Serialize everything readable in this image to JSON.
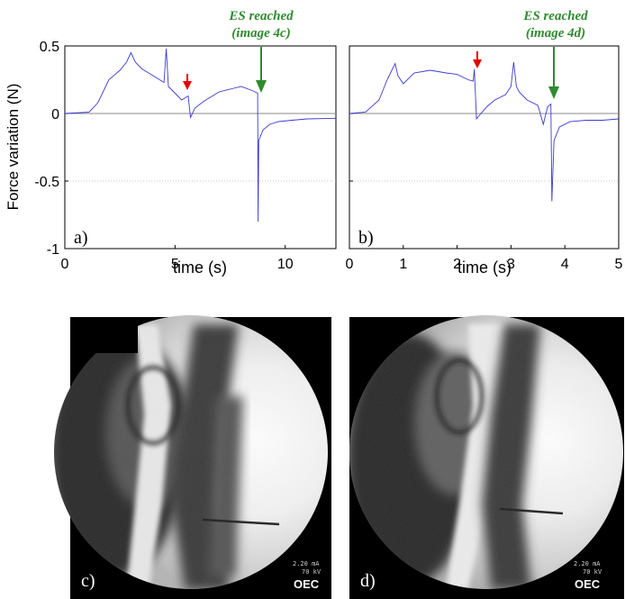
{
  "chart_data": [
    {
      "type": "line",
      "panel_label": "a)",
      "xlabel": "time (s)",
      "ylabel": "Force variation (N)",
      "xlim": [
        0,
        12.3
      ],
      "ylim": [
        -1,
        0.5
      ],
      "xticks": [
        0,
        5,
        10
      ],
      "yticks": [
        -1,
        -0.5,
        0,
        0.5
      ],
      "ytick_labels": [
        "-1",
        "-0.5",
        "0",
        "0.5"
      ],
      "grid": "horizontal dotted at -0.5",
      "zero_line": true,
      "series": [
        {
          "x": [
            0,
            1.1,
            1.5,
            2.0,
            2.5,
            2.8,
            3.0,
            3.2,
            3.5,
            3.8,
            4.0,
            4.3,
            4.5,
            4.6,
            4.7,
            5.0,
            5.3,
            5.5,
            5.6,
            5.7,
            5.9,
            6.3,
            7.0,
            7.5,
            8.0,
            8.5,
            8.75,
            8.77,
            8.8,
            9.0,
            9.3,
            9.7,
            10.3,
            11.0,
            12.3
          ],
          "y": [
            0,
            0.01,
            0.08,
            0.25,
            0.32,
            0.38,
            0.45,
            0.38,
            0.33,
            0.3,
            0.28,
            0.25,
            0.23,
            0.48,
            0.2,
            0.15,
            0.1,
            0.12,
            0.13,
            -0.03,
            0.04,
            0.09,
            0.16,
            0.18,
            0.2,
            0.17,
            0.15,
            -0.8,
            -0.2,
            -0.12,
            -0.08,
            -0.06,
            -0.05,
            -0.04,
            -0.035
          ]
        }
      ],
      "annotations": [
        {
          "text": "ES reached",
          "text2": "(image 4c)",
          "x": 8.75,
          "y": 0.15,
          "color": "#2e8b2e"
        },
        {
          "text": "",
          "x": 5.6,
          "y": 0.13,
          "color": "#e00000"
        }
      ]
    },
    {
      "type": "line",
      "panel_label": "b)",
      "xlabel": "time (s)",
      "ylabel": "",
      "xlim": [
        0,
        5
      ],
      "ylim": [
        -1,
        0.5
      ],
      "xticks": [
        0,
        1,
        2,
        3,
        4,
        5
      ],
      "grid": "horizontal dotted at -0.5",
      "zero_line": true,
      "series": [
        {
          "x": [
            0,
            0.3,
            0.55,
            0.7,
            0.85,
            0.9,
            1.0,
            1.2,
            1.5,
            1.8,
            2.0,
            2.2,
            2.3,
            2.32,
            2.36,
            2.4,
            2.55,
            2.7,
            2.9,
            3.0,
            3.05,
            3.1,
            3.15,
            3.3,
            3.5,
            3.6,
            3.68,
            3.74,
            3.76,
            3.8,
            3.9,
            4.1,
            4.4,
            4.7,
            5.0
          ],
          "y": [
            0,
            0.01,
            0.1,
            0.25,
            0.37,
            0.28,
            0.22,
            0.3,
            0.32,
            0.3,
            0.29,
            0.25,
            0.24,
            0.33,
            -0.04,
            -0.02,
            0.05,
            0.1,
            0.14,
            0.2,
            0.38,
            0.2,
            0.16,
            0.1,
            0.06,
            -0.08,
            0.05,
            0.07,
            -0.65,
            -0.2,
            -0.1,
            -0.06,
            -0.05,
            -0.05,
            -0.04
          ]
        }
      ],
      "annotations": [
        {
          "text": "ES reached",
          "text2": "(image 4d)",
          "x": 3.76,
          "y": 0.07,
          "color": "#2e8b2e"
        },
        {
          "text": "",
          "x": 2.33,
          "y": 0.33,
          "color": "#e00000"
        }
      ]
    }
  ],
  "images": [
    {
      "label": "c)",
      "readout_1": "2.20 mA",
      "readout_2": "70 kV",
      "logo": "OEC"
    },
    {
      "label": "d)",
      "readout_1": "2.20 mA",
      "readout_2": "70 kV",
      "logo": "OEC"
    }
  ],
  "colors": {
    "series": "#3a3ad0",
    "zero_line": "#8a8a8a",
    "annotation_green": "#2e8b2e",
    "annotation_red": "#e00000"
  }
}
